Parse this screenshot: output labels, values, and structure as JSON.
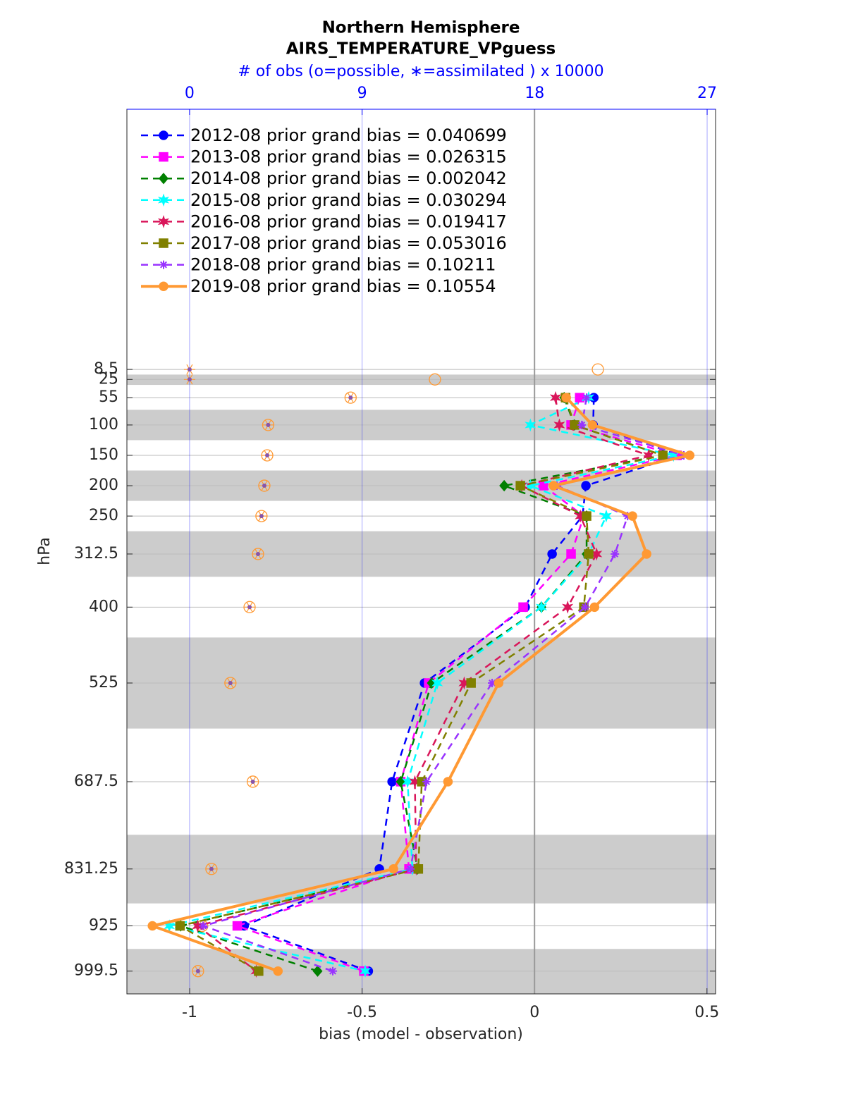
{
  "chart_data": {
    "type": "line",
    "title": "Northern Hemisphere",
    "subtitle": "AIRS_TEMPERATURE_VPguess",
    "x2label": "# of obs (o=possible, ∗=assimilated ) x 10000",
    "xlabel": "bias (model - observation)",
    "ylabel": "hPa",
    "levels": [
      8.5,
      25,
      55,
      100,
      150,
      200,
      250,
      312.5,
      400,
      525,
      687.5,
      831.25,
      925,
      999.5
    ],
    "xlim": [
      -1.182,
      0.525
    ],
    "xticks": [
      -1,
      -0.5,
      0,
      0.5
    ],
    "x2lim": [
      -3.27,
      27.44
    ],
    "x2ticks": [
      0,
      9,
      18,
      27
    ],
    "x2color": "#0000ff",
    "ylim": [
      -420,
      1037
    ],
    "yreverse": true,
    "yticks": [
      8.5,
      25,
      55,
      100,
      150,
      200,
      250,
      312.5,
      400,
      525,
      687.5,
      831.25,
      925,
      999.5
    ],
    "grid": true,
    "bands": [
      [
        17,
        34
      ],
      [
        75,
        125
      ],
      [
        175,
        225
      ],
      [
        275,
        350
      ],
      [
        450,
        600
      ],
      [
        775,
        888
      ],
      [
        963,
        1037
      ]
    ],
    "legend": "upper left",
    "obs_possible": [
      21.3,
      12.8,
      8.4,
      4.1,
      4.05,
      3.9,
      3.75,
      3.57,
      3.13,
      2.13,
      3.3,
      1.14,
      0.66,
      0.44
    ],
    "obs_assimilated": [
      0,
      0,
      8.4,
      4.1,
      4.05,
      3.9,
      3.75,
      3.57,
      3.13,
      2.13,
      3.3,
      1.14,
      0.66,
      0.44
    ],
    "series": [
      {
        "name": "2012-08 prior grand bias = 0.040699",
        "color": "#0000ff",
        "marker": "circle",
        "linestyle": "dashed",
        "values": [
          null,
          null,
          0.172,
          0.17,
          0.42,
          0.149,
          0.139,
          0.051,
          -0.027,
          -0.319,
          -0.413,
          -0.45,
          -0.842,
          -0.482
        ]
      },
      {
        "name": "2013-08 prior grand bias = 0.026315",
        "color": "#ff00ff",
        "marker": "square",
        "linestyle": "dashed",
        "values": [
          null,
          null,
          0.131,
          0.106,
          0.413,
          0.025,
          0.143,
          0.106,
          -0.033,
          -0.307,
          -0.388,
          -0.364,
          -0.862,
          -0.495
        ]
      },
      {
        "name": "2014-08 prior grand bias = 0.002042",
        "color": "#008000",
        "marker": "diamond",
        "linestyle": "dashed",
        "values": [
          null,
          null,
          0.086,
          0.116,
          0.372,
          -0.088,
          0.151,
          0.151,
          0.02,
          -0.298,
          -0.388,
          -0.339,
          -1.026,
          -0.629
        ]
      },
      {
        "name": "2015-08 prior grand bias = 0.030294",
        "color": "#00ffff",
        "marker": "star",
        "linestyle": "dashed",
        "values": [
          null,
          null,
          0.157,
          -0.012,
          0.403,
          -0.012,
          0.208,
          0.157,
          0.02,
          -0.282,
          -0.368,
          -0.354,
          -1.059,
          -0.491
        ]
      },
      {
        "name": "2016-08 prior grand bias = 0.019417",
        "color": "#d9165a",
        "marker": "star",
        "linestyle": "dashed",
        "values": [
          null,
          null,
          0.061,
          0.072,
          0.331,
          -0.037,
          0.133,
          0.18,
          0.096,
          -0.204,
          -0.347,
          -0.343,
          -0.977,
          -0.807
        ]
      },
      {
        "name": "2017-08 prior grand bias = 0.053016",
        "color": "#808000",
        "marker": "square",
        "linestyle": "dashed",
        "values": [
          null,
          null,
          0.09,
          0.116,
          0.372,
          -0.041,
          0.151,
          0.157,
          0.143,
          -0.184,
          -0.327,
          -0.337,
          -1.028,
          -0.8
        ]
      },
      {
        "name": "2018-08 prior grand bias = 0.10211",
        "color": "#9933ff",
        "marker": "asterisk",
        "linestyle": "dashed",
        "values": [
          null,
          null,
          0.151,
          0.137,
          0.433,
          0.065,
          0.27,
          0.233,
          0.147,
          -0.123,
          -0.313,
          -0.36,
          -0.961,
          -0.585
        ]
      },
      {
        "name": "2019-08 prior grand bias = 0.10554",
        "color": "#ff9933",
        "marker": "circle",
        "linestyle": "solid",
        "values": [
          null,
          null,
          0.092,
          0.168,
          0.45,
          0.055,
          0.284,
          0.325,
          0.174,
          -0.104,
          -0.251,
          -0.409,
          -1.108,
          -0.744
        ]
      }
    ]
  }
}
